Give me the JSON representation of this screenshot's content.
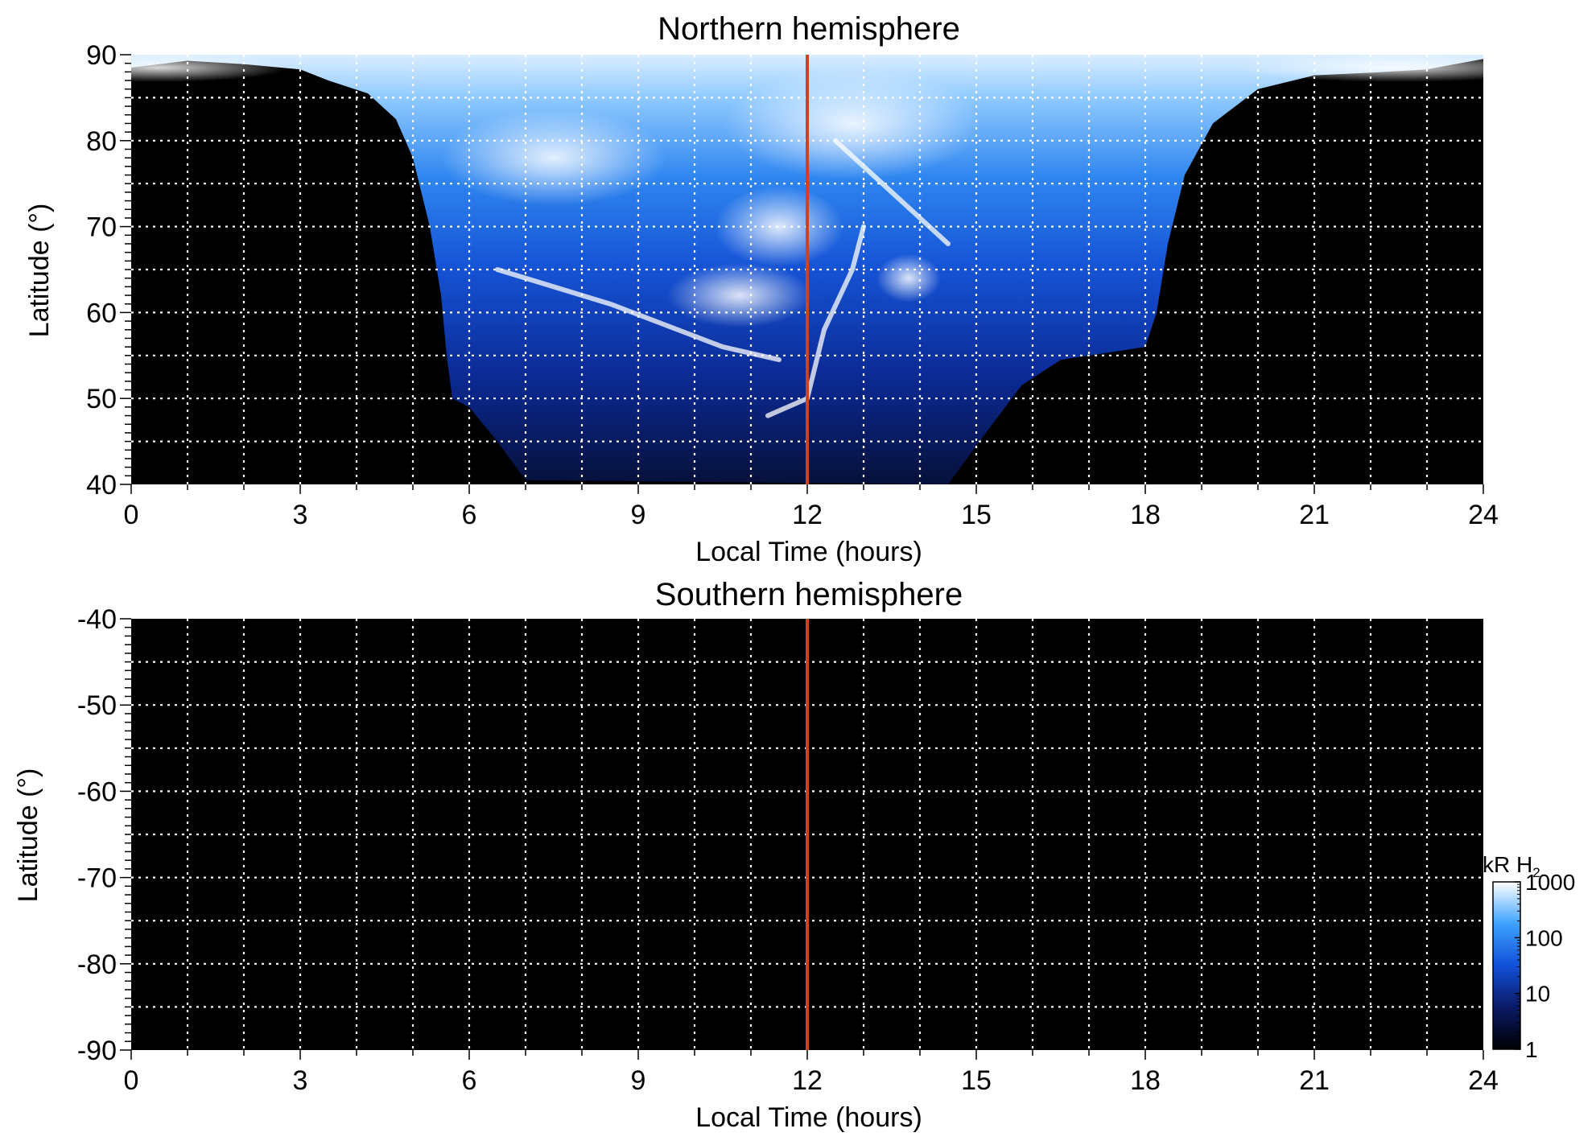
{
  "chart_data": [
    {
      "type": "heatmap",
      "title": "Northern hemisphere",
      "xlabel": "Local Time (hours)",
      "ylabel": "Latitude (°)",
      "xlim": [
        0,
        24
      ],
      "ylim": [
        40,
        90
      ],
      "xticks": [
        0,
        3,
        6,
        9,
        12,
        15,
        18,
        21,
        24
      ],
      "xtick_labels": [
        "0",
        "3",
        "6",
        "9",
        "12",
        "15",
        "18",
        "21",
        "24"
      ],
      "yticks": [
        40,
        50,
        60,
        70,
        80,
        90
      ],
      "ytick_labels": [
        "40",
        "50",
        "60",
        "70",
        "80",
        "90"
      ],
      "grid": true,
      "marker_line": {
        "x": 12,
        "color": "#d2401c"
      },
      "emission_region": {
        "upper_edge": [
          [
            0,
            88.5
          ],
          [
            1,
            89.3
          ],
          [
            2,
            88.9
          ],
          [
            3,
            88.3
          ],
          [
            3.5,
            87.0
          ],
          [
            4.2,
            85.5
          ],
          [
            4.7,
            82.5
          ],
          [
            5.0,
            78
          ],
          [
            5.3,
            70
          ],
          [
            5.5,
            62
          ],
          [
            5.6,
            55
          ],
          [
            5.7,
            50
          ],
          [
            6.0,
            49
          ],
          [
            6.5,
            45
          ],
          [
            7.0,
            40.5
          ],
          [
            14.5,
            40
          ],
          [
            15.0,
            44.5
          ],
          [
            15.8,
            51.5
          ],
          [
            16.5,
            54.5
          ],
          [
            17.5,
            55.5
          ],
          [
            18.0,
            56
          ],
          [
            18.2,
            60
          ],
          [
            18.4,
            68
          ],
          [
            18.7,
            76
          ],
          [
            19.2,
            82
          ],
          [
            20,
            86
          ],
          [
            21,
            87.6
          ],
          [
            22,
            87.9
          ],
          [
            23,
            88.3
          ],
          [
            24,
            89.5
          ]
        ]
      },
      "features": [
        {
          "name": "main oval arc",
          "points": [
            [
              6.5,
              65
            ],
            [
              8.5,
              61
            ],
            [
              10.5,
              56
            ],
            [
              11.5,
              54.5
            ]
          ]
        },
        {
          "name": "noon arc",
          "points": [
            [
              11.3,
              48
            ],
            [
              12,
              50
            ],
            [
              12.3,
              58
            ],
            [
              12.8,
              65
            ],
            [
              13.0,
              70
            ]
          ]
        },
        {
          "name": "dusk arc",
          "points": [
            [
              12.5,
              80
            ],
            [
              13.5,
              74
            ],
            [
              14.5,
              68
            ]
          ]
        }
      ]
    },
    {
      "type": "heatmap",
      "title": "Southern hemisphere",
      "xlabel": "Local Time (hours)",
      "ylabel": "Latitude (°)",
      "xlim": [
        0,
        24
      ],
      "ylim": [
        -90,
        -40
      ],
      "xticks": [
        0,
        3,
        6,
        9,
        12,
        15,
        18,
        21,
        24
      ],
      "xtick_labels": [
        "0",
        "3",
        "6",
        "9",
        "12",
        "15",
        "18",
        "21",
        "24"
      ],
      "yticks": [
        -40,
        -50,
        -60,
        -70,
        -80,
        -90
      ],
      "ytick_labels": [
        "-40",
        "-50",
        "-60",
        "-70",
        "-80",
        "-90"
      ],
      "grid": true,
      "marker_line": {
        "x": 12,
        "color": "#d2401c"
      }
    }
  ],
  "colorbar": {
    "title_main": "kR H",
    "title_sub": "2",
    "scale": "log",
    "range": [
      1,
      1000
    ],
    "ticks": [
      1,
      10,
      100,
      1000
    ],
    "tick_labels": [
      "1",
      "10",
      "100",
      "1000"
    ],
    "colors": [
      "#000000",
      "#0a1a66",
      "#1250d8",
      "#3da2ff",
      "#ffffff"
    ]
  }
}
